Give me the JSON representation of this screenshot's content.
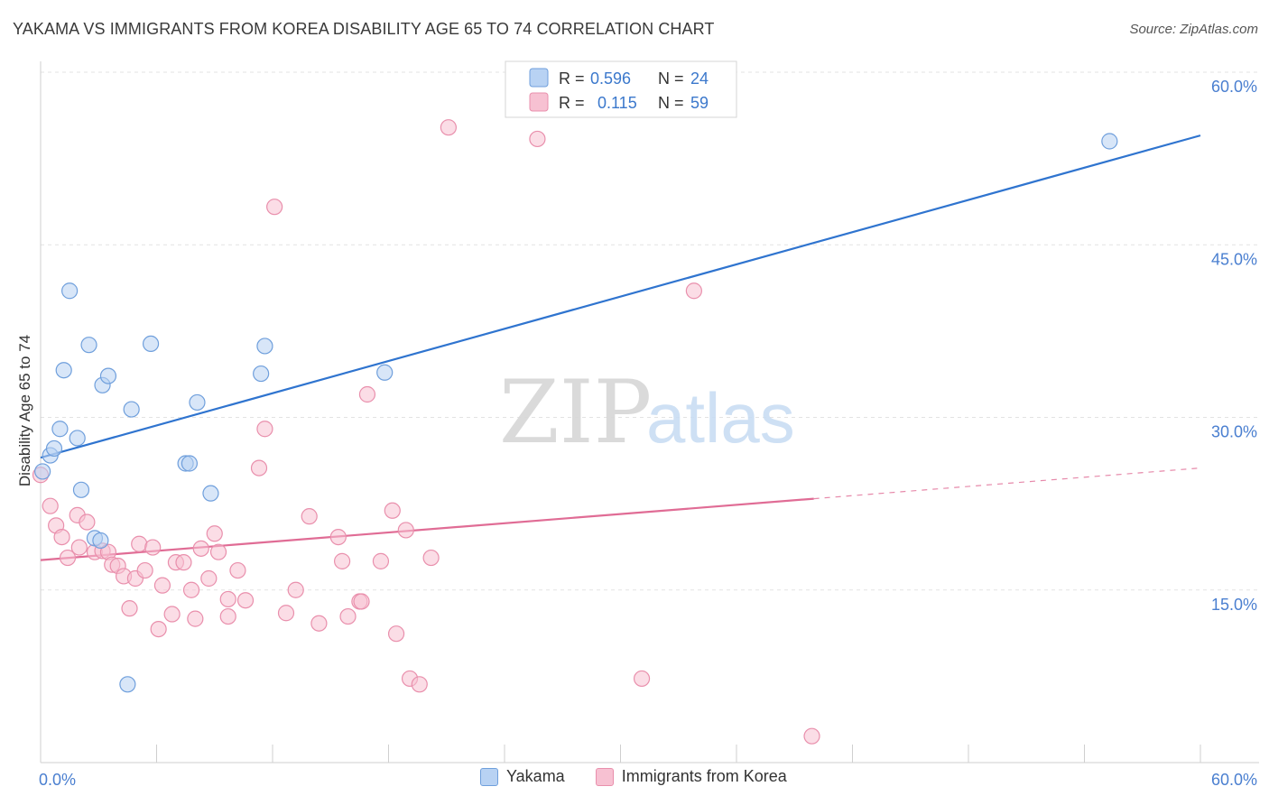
{
  "title": "YAKAMA VS IMMIGRANTS FROM KOREA DISABILITY AGE 65 TO 74 CORRELATION CHART",
  "source": "Source: ZipAtlas.com",
  "watermark": {
    "part1": "ZIP",
    "part2": "atlas"
  },
  "colors": {
    "yakama_fill": "#b8d2f3",
    "yakama_stroke": "#6f9fdc",
    "yakama_line": "#2f74cf",
    "korea_fill": "#f7c1d2",
    "korea_stroke": "#e98fac",
    "korea_line": "#e06c95",
    "tick_label": "#4a7fd0",
    "grid": "#e3e3e3"
  },
  "legend": {
    "rows": [
      {
        "r_label": "R =",
        "r_value": "0.596",
        "n_label": "N =",
        "n_value": "24"
      },
      {
        "r_label": "R =",
        "r_value": "0.115",
        "n_label": "N =",
        "n_value": "59"
      }
    ]
  },
  "chart_data": {
    "type": "scatter",
    "xlabel": "",
    "ylabel": "Disability Age 65 to 74",
    "xlim": [
      0,
      60
    ],
    "ylim": [
      0,
      60
    ],
    "x_tick_labels": [
      "0.0%",
      "60.0%"
    ],
    "y_ticks": [
      15,
      30,
      45,
      60
    ],
    "y_tick_labels": [
      "15.0%",
      "30.0%",
      "45.0%",
      "60.0%"
    ],
    "grid": true,
    "legend_position": "top-center",
    "series": [
      {
        "name": "Yakama",
        "r": 0.596,
        "n": 24,
        "trend": {
          "x0": 0,
          "y0": 26.5,
          "x1": 60,
          "y1": 54.5,
          "solid_until": 60
        },
        "points": [
          [
            0.1,
            25.3
          ],
          [
            0.5,
            26.7
          ],
          [
            0.7,
            27.3
          ],
          [
            1.0,
            29.0
          ],
          [
            1.2,
            34.1
          ],
          [
            1.5,
            41.0
          ],
          [
            1.9,
            28.2
          ],
          [
            2.1,
            23.7
          ],
          [
            2.5,
            36.3
          ],
          [
            2.8,
            19.5
          ],
          [
            3.1,
            19.3
          ],
          [
            3.2,
            32.8
          ],
          [
            3.5,
            33.6
          ],
          [
            4.5,
            6.8
          ],
          [
            4.7,
            30.7
          ],
          [
            5.7,
            36.4
          ],
          [
            7.5,
            26.0
          ],
          [
            7.7,
            26.0
          ],
          [
            8.1,
            31.3
          ],
          [
            8.8,
            23.4
          ],
          [
            11.4,
            33.8
          ],
          [
            11.6,
            36.2
          ],
          [
            17.8,
            33.9
          ],
          [
            55.3,
            54.0
          ]
        ]
      },
      {
        "name": "Immigrants from Korea",
        "r": 0.115,
        "n": 59,
        "trend": {
          "x0": 0,
          "y0": 17.6,
          "x1": 60,
          "y1": 25.6,
          "solid_until": 40
        },
        "points": [
          [
            0.0,
            25.0
          ],
          [
            0.5,
            22.3
          ],
          [
            0.8,
            20.6
          ],
          [
            1.1,
            19.6
          ],
          [
            1.4,
            17.8
          ],
          [
            1.9,
            21.5
          ],
          [
            2.0,
            18.7
          ],
          [
            2.4,
            20.9
          ],
          [
            2.8,
            18.3
          ],
          [
            3.2,
            18.4
          ],
          [
            3.5,
            18.3
          ],
          [
            3.7,
            17.2
          ],
          [
            4.0,
            17.1
          ],
          [
            4.3,
            16.2
          ],
          [
            4.6,
            13.4
          ],
          [
            4.9,
            16.0
          ],
          [
            5.1,
            19.0
          ],
          [
            5.4,
            16.7
          ],
          [
            5.8,
            18.7
          ],
          [
            6.1,
            11.6
          ],
          [
            6.3,
            15.4
          ],
          [
            6.8,
            12.9
          ],
          [
            7.0,
            17.4
          ],
          [
            7.4,
            17.4
          ],
          [
            7.8,
            15.0
          ],
          [
            8.0,
            12.5
          ],
          [
            8.3,
            18.6
          ],
          [
            8.7,
            16.0
          ],
          [
            9.0,
            19.9
          ],
          [
            9.2,
            18.3
          ],
          [
            9.7,
            12.7
          ],
          [
            9.7,
            14.2
          ],
          [
            10.2,
            16.7
          ],
          [
            10.6,
            14.1
          ],
          [
            11.3,
            25.6
          ],
          [
            11.6,
            29.0
          ],
          [
            12.1,
            48.3
          ],
          [
            12.7,
            13.0
          ],
          [
            13.2,
            15.0
          ],
          [
            13.9,
            21.4
          ],
          [
            14.4,
            12.1
          ],
          [
            15.4,
            19.6
          ],
          [
            15.6,
            17.5
          ],
          [
            15.9,
            12.7
          ],
          [
            16.5,
            14.0
          ],
          [
            16.6,
            14.0
          ],
          [
            16.9,
            32.0
          ],
          [
            17.6,
            17.5
          ],
          [
            18.2,
            21.9
          ],
          [
            18.4,
            11.2
          ],
          [
            18.9,
            20.2
          ],
          [
            19.1,
            7.3
          ],
          [
            19.6,
            6.8
          ],
          [
            20.2,
            17.8
          ],
          [
            21.1,
            55.2
          ],
          [
            25.7,
            54.2
          ],
          [
            31.1,
            7.3
          ],
          [
            33.8,
            41.0
          ],
          [
            39.9,
            2.3
          ]
        ]
      }
    ]
  }
}
